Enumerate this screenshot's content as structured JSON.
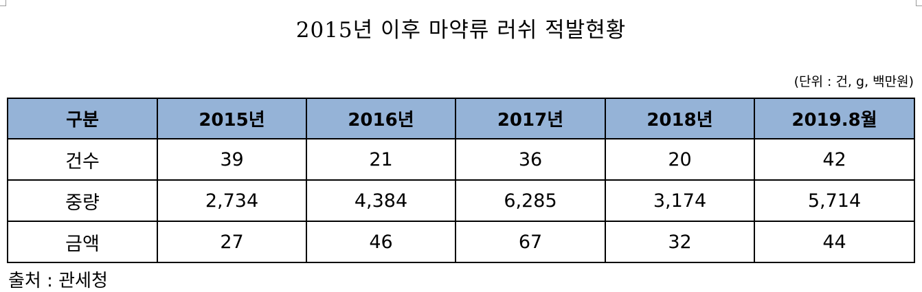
{
  "title": "2015년 이후 마약류 러쉬 적발현황",
  "unit": "(단위 : 건, g, 백만원)",
  "table": {
    "header": [
      "구분",
      "2015년",
      "2016년",
      "2017년",
      "2018년",
      "2019.8월"
    ],
    "rows": [
      [
        "건수",
        "39",
        "21",
        "36",
        "20",
        "42"
      ],
      [
        "중량",
        "2,734",
        "4,384",
        "6,285",
        "3,174",
        "5,714"
      ],
      [
        "금액",
        "27",
        "46",
        "67",
        "32",
        "44"
      ]
    ]
  },
  "source": "출처 : 관세청"
}
